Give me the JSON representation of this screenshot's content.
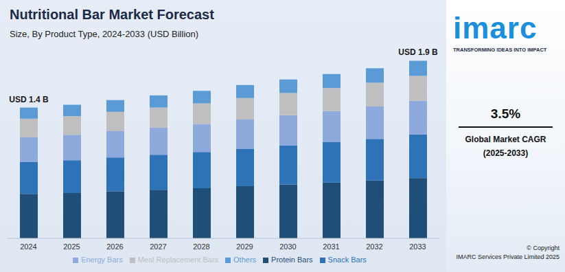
{
  "chart_data": {
    "type": "bar",
    "title": "Nutritional Bar Market Forecast",
    "subtitle": "Size, By Product Type, 2024-2033 (USD Billion)",
    "categories": [
      "2024",
      "2025",
      "2026",
      "2027",
      "2028",
      "2029",
      "2030",
      "2031",
      "2032",
      "2033"
    ],
    "series": [
      {
        "name": "Protein Bars",
        "color": "#1f4e79",
        "values": [
          0.476,
          0.486,
          0.503,
          0.52,
          0.537,
          0.558,
          0.578,
          0.598,
          0.619,
          0.646
        ]
      },
      {
        "name": "Snack Bars",
        "color": "#2e72b8",
        "values": [
          0.343,
          0.35,
          0.363,
          0.375,
          0.387,
          0.402,
          0.417,
          0.431,
          0.446,
          0.466
        ]
      },
      {
        "name": "Energy Bars",
        "color": "#8eaadc",
        "values": [
          0.266,
          0.272,
          0.281,
          0.291,
          0.3,
          0.312,
          0.323,
          0.334,
          0.346,
          0.361
        ]
      },
      {
        "name": "Meal Replacement Bars",
        "color": "#bfbfbf",
        "values": [
          0.196,
          0.2,
          0.207,
          0.214,
          0.221,
          0.23,
          0.238,
          0.246,
          0.255,
          0.266
        ]
      },
      {
        "name": "Others",
        "color": "#5b9bd5",
        "values": [
          0.119,
          0.122,
          0.126,
          0.13,
          0.134,
          0.139,
          0.145,
          0.15,
          0.155,
          0.162
        ]
      }
    ],
    "ylim": [
      0,
      2
    ],
    "stacked": true,
    "tick_labels": "x",
    "legend": "bottom",
    "annotations": [
      {
        "text": "USD 1.4 B",
        "category": "2024"
      },
      {
        "text": "USD 1.9 B",
        "category": "2033"
      }
    ],
    "cagr": {
      "value": "3.5%",
      "label": [
        "Global Market CAGR",
        "(2025-2033)"
      ]
    },
    "logo": {
      "name": "imarc",
      "tagline": "TRANSFORMING IDEAS INTO IMPACT"
    },
    "copyright": [
      "© Copyright",
      "IMARC Services Private Limited 2025"
    ]
  }
}
